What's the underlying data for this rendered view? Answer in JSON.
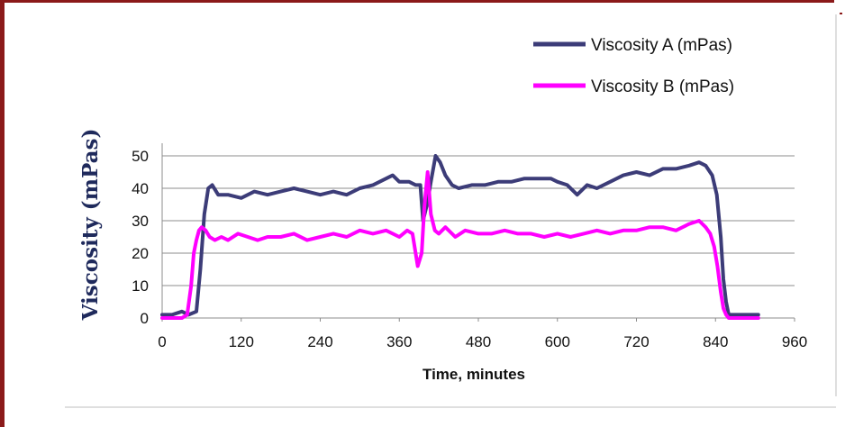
{
  "chart_data": {
    "type": "line",
    "xlabel": "Time, minutes",
    "ylabel": "Viscosity (mPas)",
    "xlim": [
      0,
      960
    ],
    "ylim": [
      0,
      50
    ],
    "xticks": [
      "0",
      "120",
      "240",
      "360",
      "480",
      "600",
      "720",
      "840",
      "960"
    ],
    "yticks": [
      "0",
      "10",
      "20",
      "30",
      "40",
      "50"
    ],
    "grid": "horizontal",
    "legend_position": "top-right",
    "series": [
      {
        "name": "Viscosity A (mPas)",
        "color": "#3c3c78",
        "x": [
          0,
          15,
          30,
          40,
          52,
          58,
          64,
          70,
          76,
          85,
          100,
          120,
          140,
          160,
          180,
          200,
          220,
          240,
          260,
          280,
          300,
          320,
          340,
          350,
          360,
          375,
          385,
          392,
          396,
          402,
          408,
          415,
          422,
          430,
          440,
          450,
          470,
          490,
          510,
          530,
          550,
          570,
          590,
          600,
          615,
          630,
          645,
          660,
          680,
          700,
          720,
          740,
          760,
          780,
          800,
          815,
          825,
          835,
          842,
          848,
          852,
          856,
          860,
          865,
          875,
          890,
          905
        ],
        "values": [
          1,
          1,
          2,
          1,
          2,
          15,
          32,
          40,
          41,
          38,
          38,
          37,
          39,
          38,
          39,
          40,
          39,
          38,
          39,
          38,
          40,
          41,
          43,
          44,
          42,
          42,
          41,
          41,
          30,
          35,
          42,
          50,
          48,
          44,
          41,
          40,
          41,
          41,
          42,
          42,
          43,
          43,
          43,
          42,
          41,
          38,
          41,
          40,
          42,
          44,
          45,
          44,
          46,
          46,
          47,
          48,
          47,
          44,
          38,
          25,
          12,
          5,
          1,
          1,
          1,
          1,
          1
        ]
      },
      {
        "name": "Viscosity B (mPas)",
        "color": "#ff00ff",
        "x": [
          0,
          15,
          30,
          38,
          44,
          48,
          52,
          56,
          60,
          66,
          72,
          80,
          90,
          100,
          115,
          130,
          145,
          160,
          180,
          200,
          220,
          240,
          260,
          280,
          300,
          320,
          340,
          360,
          372,
          380,
          388,
          394,
          398,
          403,
          408,
          414,
          420,
          430,
          445,
          460,
          480,
          500,
          520,
          540,
          560,
          580,
          600,
          620,
          640,
          660,
          680,
          700,
          720,
          740,
          760,
          780,
          800,
          815,
          825,
          832,
          838,
          843,
          848,
          852,
          856,
          860,
          880,
          905
        ],
        "values": [
          0,
          0,
          0,
          1,
          10,
          20,
          24,
          27,
          28,
          27,
          25,
          24,
          25,
          24,
          26,
          25,
          24,
          25,
          25,
          26,
          24,
          25,
          26,
          25,
          27,
          26,
          27,
          25,
          27,
          26,
          16,
          20,
          34,
          45,
          32,
          27,
          26,
          28,
          25,
          27,
          26,
          26,
          27,
          26,
          26,
          25,
          26,
          25,
          26,
          27,
          26,
          27,
          27,
          28,
          28,
          27,
          29,
          30,
          28,
          26,
          22,
          16,
          8,
          3,
          1,
          0,
          0,
          0
        ]
      }
    ]
  }
}
